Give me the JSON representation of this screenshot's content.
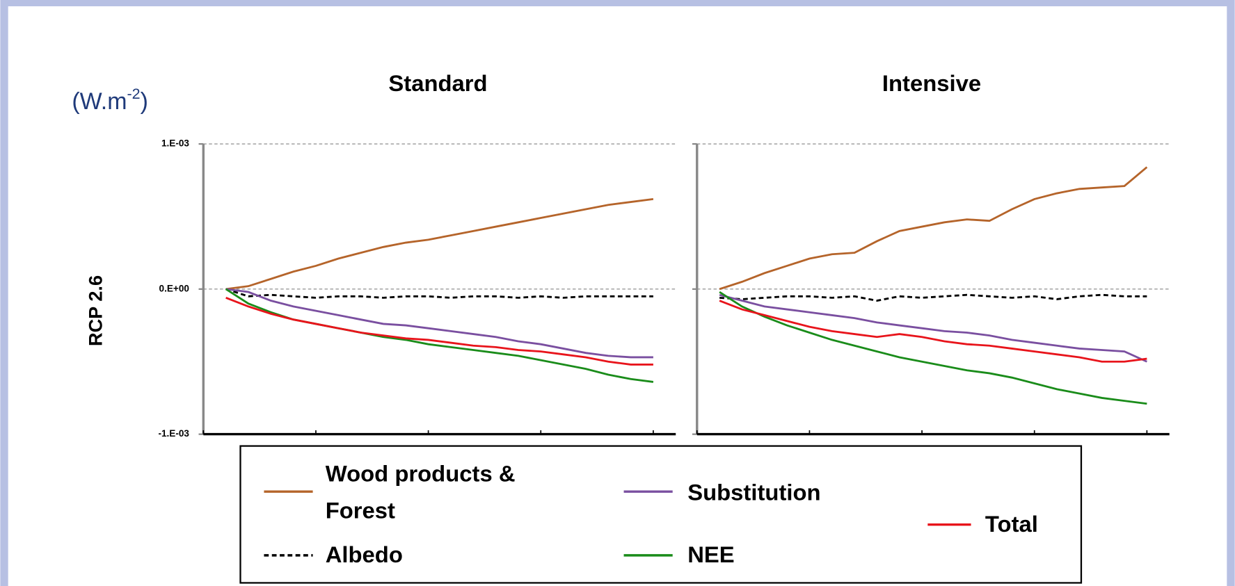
{
  "unit_label": {
    "base": "(W.m",
    "superscript": "-2",
    "close": ")"
  },
  "row_label": "RCP 2.6",
  "chart_data": [
    {
      "type": "line",
      "title": "Standard",
      "x": [
        5,
        10,
        15,
        20,
        25,
        30,
        35,
        40,
        45,
        50,
        55,
        60,
        65,
        70,
        75,
        80,
        85,
        90,
        95,
        100
      ],
      "xlim": [
        0,
        105
      ],
      "xticks": [
        0,
        25,
        50,
        75,
        100
      ],
      "ylim": [
        -0.001,
        0.001
      ],
      "yticks": [
        {
          "value": 0.001,
          "label": "1.E-03"
        },
        {
          "value": 0,
          "label": "0.E+00"
        },
        {
          "value": -0.001,
          "label": "-1.E-03"
        }
      ],
      "grid": true,
      "series": [
        {
          "name": "Wood products & Forest",
          "color": "#b5642a",
          "values": [
            0,
            2e-05,
            7e-05,
            0.00012,
            0.00016,
            0.00021,
            0.00025,
            0.00029,
            0.00032,
            0.00034,
            0.00037,
            0.0004,
            0.00043,
            0.00046,
            0.00049,
            0.00052,
            0.00055,
            0.00058,
            0.0006,
            0.00062
          ]
        },
        {
          "name": "Albedo",
          "color": "#000000",
          "dashed": true,
          "values": [
            0,
            -5e-05,
            -4e-05,
            -5e-05,
            -6e-05,
            -5e-05,
            -5e-05,
            -6e-05,
            -5e-05,
            -5e-05,
            -6e-05,
            -5e-05,
            -5e-05,
            -6e-05,
            -5e-05,
            -6e-05,
            -5e-05,
            -5e-05,
            -5e-05,
            -5e-05
          ]
        },
        {
          "name": "Substitution",
          "color": "#7a4fa0",
          "values": [
            0,
            -2e-05,
            -8e-05,
            -0.00012,
            -0.00015,
            -0.00018,
            -0.00021,
            -0.00024,
            -0.00025,
            -0.00027,
            -0.00029,
            -0.00031,
            -0.00033,
            -0.00036,
            -0.00038,
            -0.00041,
            -0.00044,
            -0.00046,
            -0.00047,
            -0.00047
          ]
        },
        {
          "name": "NEE",
          "color": "#1a8c1a",
          "values": [
            0,
            -0.0001,
            -0.00016,
            -0.00021,
            -0.00024,
            -0.00027,
            -0.0003,
            -0.00033,
            -0.00035,
            -0.00038,
            -0.0004,
            -0.00042,
            -0.00044,
            -0.00046,
            -0.00049,
            -0.00052,
            -0.00055,
            -0.00059,
            -0.00062,
            -0.00064
          ]
        },
        {
          "name": "Total",
          "color": "#e8141b",
          "values": [
            -6e-05,
            -0.00012,
            -0.00017,
            -0.00021,
            -0.00024,
            -0.00027,
            -0.0003,
            -0.00032,
            -0.00034,
            -0.00035,
            -0.00037,
            -0.00039,
            -0.0004,
            -0.00042,
            -0.00043,
            -0.00045,
            -0.00047,
            -0.0005,
            -0.00052,
            -0.00052
          ]
        }
      ]
    },
    {
      "type": "line",
      "title": "Intensive",
      "x": [
        5,
        10,
        15,
        20,
        25,
        30,
        35,
        40,
        45,
        50,
        55,
        60,
        65,
        70,
        75,
        80,
        85,
        90,
        95,
        100
      ],
      "xlim": [
        0,
        105
      ],
      "xticks": [
        0,
        25,
        50,
        75,
        100
      ],
      "ylim": [
        -0.001,
        0.001
      ],
      "yticks": [
        {
          "value": 0.001,
          "label": "1.E-03"
        },
        {
          "value": 0,
          "label": "0.E+00"
        },
        {
          "value": -0.001,
          "label": "-1.E-03"
        }
      ],
      "grid": true,
      "series": [
        {
          "name": "Wood products & Forest",
          "color": "#b5642a",
          "values": [
            0,
            5e-05,
            0.00011,
            0.00016,
            0.00021,
            0.00024,
            0.00025,
            0.00033,
            0.0004,
            0.00043,
            0.00046,
            0.00048,
            0.00047,
            0.00055,
            0.00062,
            0.00066,
            0.00069,
            0.0007,
            0.00071,
            0.00084
          ]
        },
        {
          "name": "Albedo",
          "color": "#000000",
          "dashed": true,
          "values": [
            -6e-05,
            -7e-05,
            -6e-05,
            -5e-05,
            -5e-05,
            -6e-05,
            -5e-05,
            -8e-05,
            -5e-05,
            -6e-05,
            -5e-05,
            -4e-05,
            -5e-05,
            -6e-05,
            -5e-05,
            -7e-05,
            -5e-05,
            -4e-05,
            -5e-05,
            -5e-05
          ]
        },
        {
          "name": "Substitution",
          "color": "#7a4fa0",
          "values": [
            -4e-05,
            -8e-05,
            -0.00012,
            -0.00014,
            -0.00016,
            -0.00018,
            -0.0002,
            -0.00023,
            -0.00025,
            -0.00027,
            -0.00029,
            -0.0003,
            -0.00032,
            -0.00035,
            -0.00037,
            -0.00039,
            -0.00041,
            -0.00042,
            -0.00043,
            -0.0005
          ]
        },
        {
          "name": "NEE",
          "color": "#1a8c1a",
          "values": [
            -2e-05,
            -0.00012,
            -0.00019,
            -0.00025,
            -0.0003,
            -0.00035,
            -0.00039,
            -0.00043,
            -0.00047,
            -0.0005,
            -0.00053,
            -0.00056,
            -0.00058,
            -0.00061,
            -0.00065,
            -0.00069,
            -0.00072,
            -0.00075,
            -0.00077,
            -0.00079
          ]
        },
        {
          "name": "Total",
          "color": "#e8141b",
          "values": [
            -8e-05,
            -0.00014,
            -0.00018,
            -0.00022,
            -0.00026,
            -0.00029,
            -0.00031,
            -0.00033,
            -0.00031,
            -0.00033,
            -0.00036,
            -0.00038,
            -0.00039,
            -0.00041,
            -0.00043,
            -0.00045,
            -0.00047,
            -0.0005,
            -0.0005,
            -0.00048
          ]
        }
      ]
    }
  ]
}
